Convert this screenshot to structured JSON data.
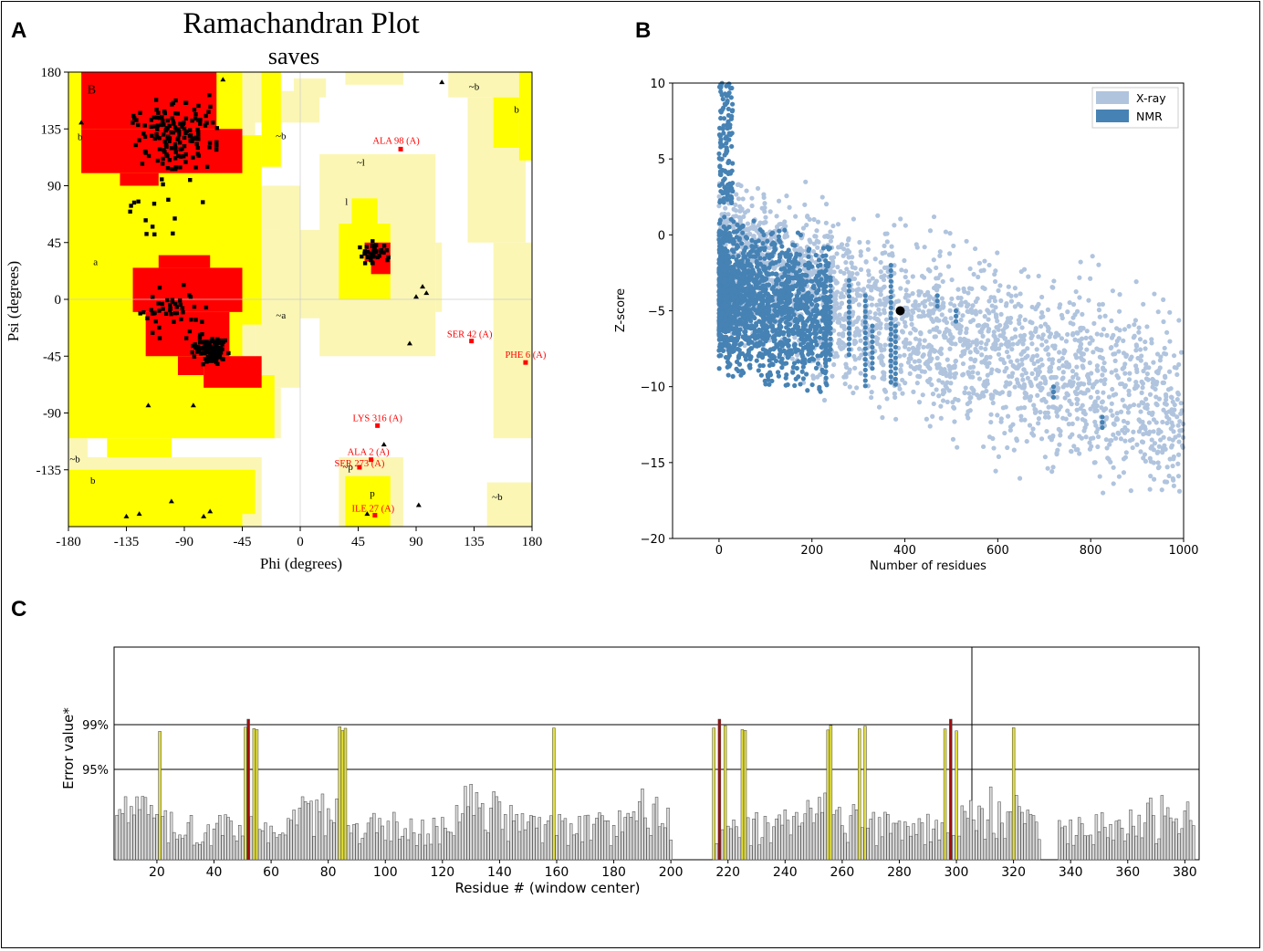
{
  "panel_labels": {
    "a": "A",
    "b": "B",
    "c": "C"
  },
  "chart_data": [
    {
      "type": "scatter",
      "panel": "A",
      "title": "Ramachandran Plot",
      "subtitle": "saves",
      "xlabel": "Phi (degrees)",
      "ylabel": "Psi (degrees)",
      "xlim": [
        -180,
        180
      ],
      "ylim": [
        -180,
        180
      ],
      "xticks": [
        -180,
        -135,
        -90,
        -45,
        0,
        45,
        90,
        135,
        180
      ],
      "yticks": [
        180,
        135,
        90,
        45,
        0,
        -45,
        -90,
        -135
      ],
      "xtick_labels": [
        "-180",
        "-135",
        "-90",
        "-45",
        "0",
        "45",
        "90",
        "135",
        "180"
      ],
      "ytick_labels": [
        "180",
        "135",
        "90",
        "45",
        "0",
        "-45",
        "-90",
        "-135"
      ],
      "colors": {
        "core": "#ff0000",
        "allowed": "#ffff00",
        "generous": "#fbf6b4",
        "outlier": "#ff0000"
      },
      "region_labels": [
        {
          "text": "B",
          "phi": -162,
          "psi": 163
        },
        {
          "text": "b",
          "phi": -171,
          "psi": 126
        },
        {
          "text": "~b",
          "phi": -15,
          "psi": 127
        },
        {
          "text": "~l",
          "phi": 47,
          "psi": 106
        },
        {
          "text": "l",
          "phi": 36,
          "psi": 75
        },
        {
          "text": "a",
          "phi": -159,
          "psi": 27
        },
        {
          "text": "~a",
          "phi": -15,
          "psi": -15
        },
        {
          "text": "~b",
          "phi": 135,
          "psi": 166
        },
        {
          "text": "b",
          "phi": 168,
          "psi": 148
        },
        {
          "text": "~b",
          "phi": -175,
          "psi": -129
        },
        {
          "text": "b",
          "phi": -161,
          "psi": -146
        },
        {
          "text": "~p",
          "phi": 37,
          "psi": -135
        },
        {
          "text": "p",
          "phi": 56,
          "psi": -156
        },
        {
          "text": "~b",
          "phi": 153,
          "psi": -159
        }
      ],
      "outliers": [
        {
          "label": "ALA 98 (A)",
          "phi": 78,
          "psi": 119
        },
        {
          "label": "SER 42 (A)",
          "phi": 133,
          "psi": -33
        },
        {
          "label": "PHE 6 (A)",
          "phi": 175,
          "psi": -50
        },
        {
          "label": "LYS 316 (A)",
          "phi": 60,
          "psi": -100
        },
        {
          "label": "ALA 2 (A)",
          "phi": 55,
          "psi": -127
        },
        {
          "label": "SER 273 (A)",
          "phi": 46,
          "psi": -133
        },
        {
          "label": "ILE 27 (A)",
          "phi": 58,
          "psi": -171
        }
      ]
    },
    {
      "type": "scatter",
      "panel": "B",
      "xlabel": "Number of residues",
      "ylabel": "Z-score",
      "xlim": [
        -100,
        1000
      ],
      "ylim": [
        -20,
        10
      ],
      "xticks": [
        0,
        200,
        400,
        600,
        800,
        1000
      ],
      "yticks": [
        10,
        5,
        0,
        -5,
        -10,
        -15,
        -20
      ],
      "xtick_labels": [
        "0",
        "200",
        "400",
        "600",
        "800",
        "1000"
      ],
      "ytick_labels": [
        "10",
        "5",
        "0",
        "−5",
        "−10",
        "−15",
        "−20"
      ],
      "series": [
        {
          "name": "X-ray",
          "color": "#b0c4de"
        },
        {
          "name": "NMR",
          "color": "#4682b4"
        }
      ],
      "highlight_point": {
        "x": 390,
        "y": -5
      }
    },
    {
      "type": "bar",
      "panel": "C",
      "xlabel": "Residue # (window center)",
      "ylabel": "Error value*",
      "xlim": [
        5,
        385
      ],
      "xticks": [
        20,
        40,
        60,
        80,
        100,
        120,
        140,
        160,
        180,
        200,
        220,
        240,
        260,
        280,
        300,
        320,
        340,
        360,
        380
      ],
      "xtick_labels": [
        "20",
        "40",
        "60",
        "80",
        "100",
        "120",
        "140",
        "160",
        "180",
        "200",
        "220",
        "240",
        "260",
        "280",
        "300",
        "320",
        "340",
        "360",
        "380"
      ],
      "threshold_lines": [
        {
          "label": "99%",
          "value": 99
        },
        {
          "label": "95%",
          "value": 95
        }
      ],
      "bar_colors": {
        "normal": "#d9d9d9",
        "above_95": "#e3df3c",
        "above_99": "#a10d0d"
      },
      "gaps": [
        [
          201,
          214
        ],
        [
          330,
          335
        ]
      ],
      "peaks_above_99": [
        52,
        217,
        298
      ],
      "peaks_above_95": [
        21,
        51,
        54,
        55,
        84,
        85,
        86,
        159,
        215,
        219,
        225,
        226,
        255,
        256,
        266,
        268,
        296,
        300,
        320
      ]
    }
  ]
}
